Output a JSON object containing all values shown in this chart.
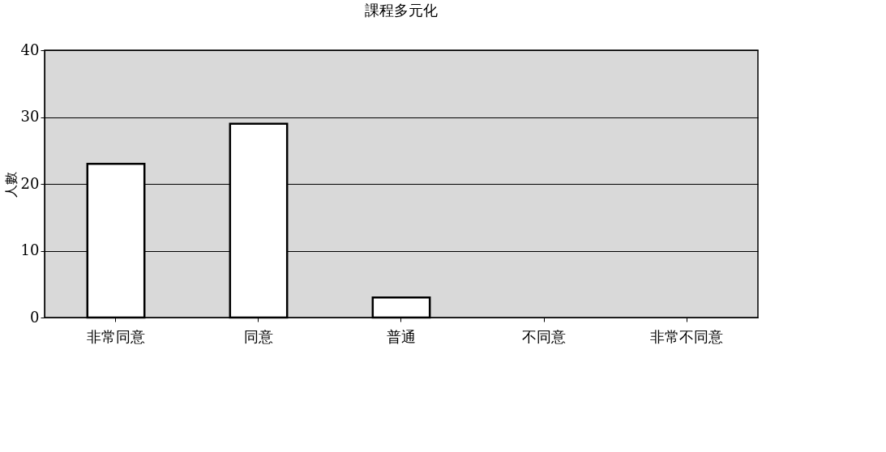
{
  "chart_data": {
    "type": "bar",
    "title": "課程多元化",
    "ylabel": "人數",
    "categories": [
      "非常同意",
      "同意",
      "普通",
      "不同意",
      "非常不同意"
    ],
    "values": [
      23,
      29,
      3,
      0,
      0
    ],
    "color": "#ffffff",
    "ylim": [
      0,
      40
    ],
    "yticks": [
      0,
      10,
      20,
      30,
      40
    ],
    "grid": "y"
  }
}
